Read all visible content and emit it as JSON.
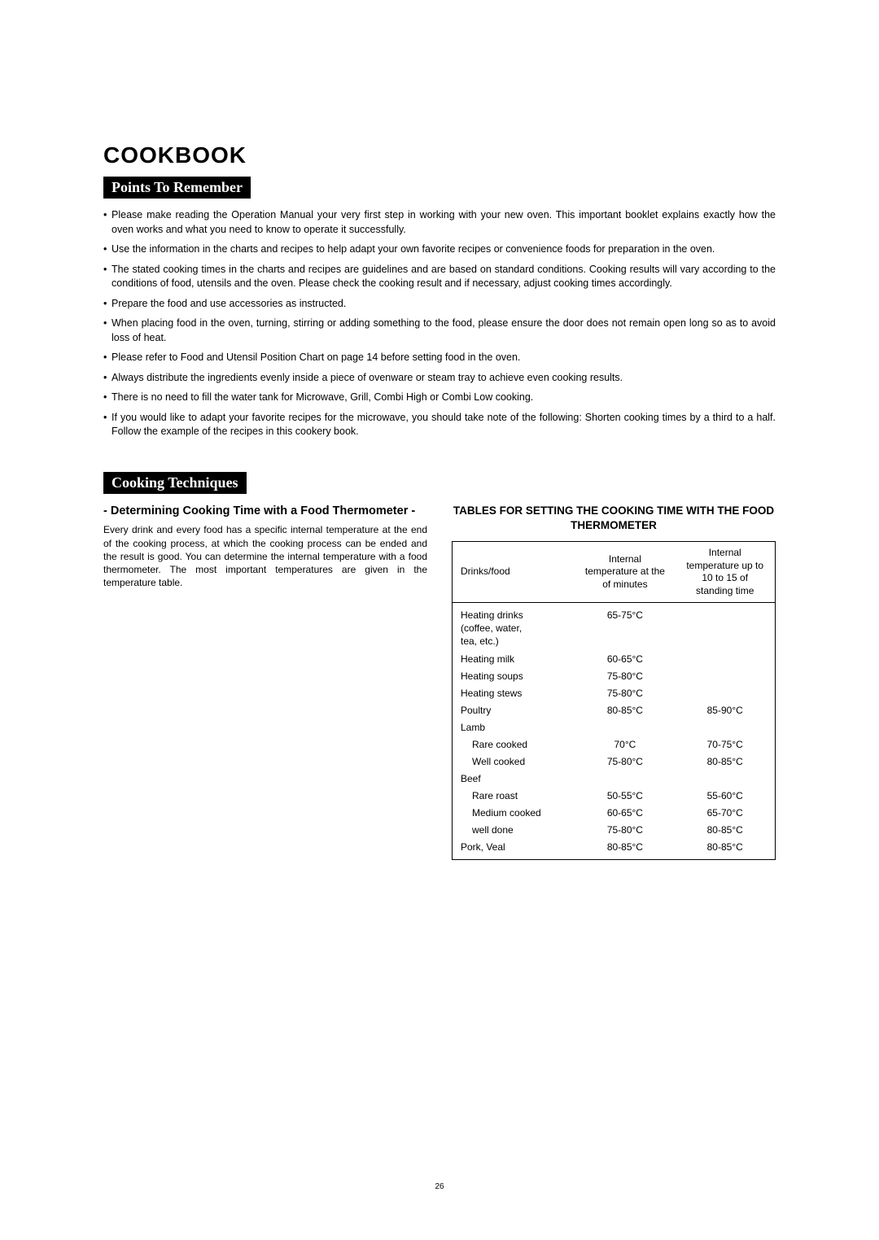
{
  "page": {
    "number": "26",
    "title": "COOKBOOK"
  },
  "sections": {
    "points_to_remember": {
      "heading": "Points To Remember",
      "bullets": [
        "Please make reading the Operation Manual your very first step in working with your new oven. This important booklet explains exactly how the oven works and what you need to know to operate it successfully.",
        "Use the information in the charts and recipes to help adapt your own favorite recipes or convenience foods for preparation in the oven.",
        "The stated cooking times in the charts and recipes are guidelines and are based on standard conditions. Cooking results will vary according to the conditions of food, utensils and the oven. Please check the cooking result and if necessary, adjust cooking times accordingly.",
        "Prepare the food and use accessories as instructed.",
        "When placing food in the oven, turning, stirring or adding something to the food, please ensure the door does not remain open long so as to avoid loss of heat.",
        "Please refer to Food and Utensil Position Chart on page 14 before setting food in the oven.",
        "Always distribute the ingredients evenly inside a piece of ovenware or steam tray to achieve even cooking results.",
        "There is no need to fill the water tank for Microwave, Grill, Combi High or Combi Low cooking.",
        "If you would like to adapt your favorite recipes for the microwave, you should take note of the following: Shorten cooking times by a third to a half. Follow the example of the recipes in this cookery book."
      ]
    },
    "cooking_techniques": {
      "heading": "Cooking Techniques",
      "subsection_title": "- Determining Cooking Time with a Food Thermometer -",
      "body": "Every drink and every food has a specific internal temperature at the end of the cooking process, at which the cooking process can be ended and the result is good. You can determine the internal temperature with a food thermometer. The most important temperatures are given in the temperature table.",
      "table_title": "TABLES FOR SETTING THE COOKING TIME WITH THE FOOD THERMOMETER",
      "table": {
        "headers": [
          "Drinks/food",
          "Internal temperature at the of minutes",
          "Internal temperature up to 10 to 15 of standing time"
        ],
        "rows": [
          {
            "food": "Heating drinks (coffee, water, tea, etc.)",
            "t1": "65-75°C",
            "t2": "",
            "indent": false,
            "multiline": true
          },
          {
            "food": "Heating milk",
            "t1": "60-65°C",
            "t2": "",
            "indent": false
          },
          {
            "food": "Heating soups",
            "t1": "75-80°C",
            "t2": "",
            "indent": false
          },
          {
            "food": "Heating stews",
            "t1": "75-80°C",
            "t2": "",
            "indent": false
          },
          {
            "food": "Poultry",
            "t1": "80-85°C",
            "t2": "85-90°C",
            "indent": false
          },
          {
            "food": "Lamb",
            "t1": "",
            "t2": "",
            "indent": false
          },
          {
            "food": "Rare cooked",
            "t1": "70°C",
            "t2": "70-75°C",
            "indent": true
          },
          {
            "food": "Well cooked",
            "t1": "75-80°C",
            "t2": "80-85°C",
            "indent": true
          },
          {
            "food": "Beef",
            "t1": "",
            "t2": "",
            "indent": false
          },
          {
            "food": "Rare roast",
            "t1": "50-55°C",
            "t2": "55-60°C",
            "indent": true
          },
          {
            "food": "Medium cooked",
            "t1": "60-65°C",
            "t2": "65-70°C",
            "indent": true
          },
          {
            "food": "well done",
            "t1": "75-80°C",
            "t2": "80-85°C",
            "indent": true
          },
          {
            "food": "Pork, Veal",
            "t1": "80-85°C",
            "t2": "80-85°C",
            "indent": false
          }
        ]
      }
    }
  }
}
